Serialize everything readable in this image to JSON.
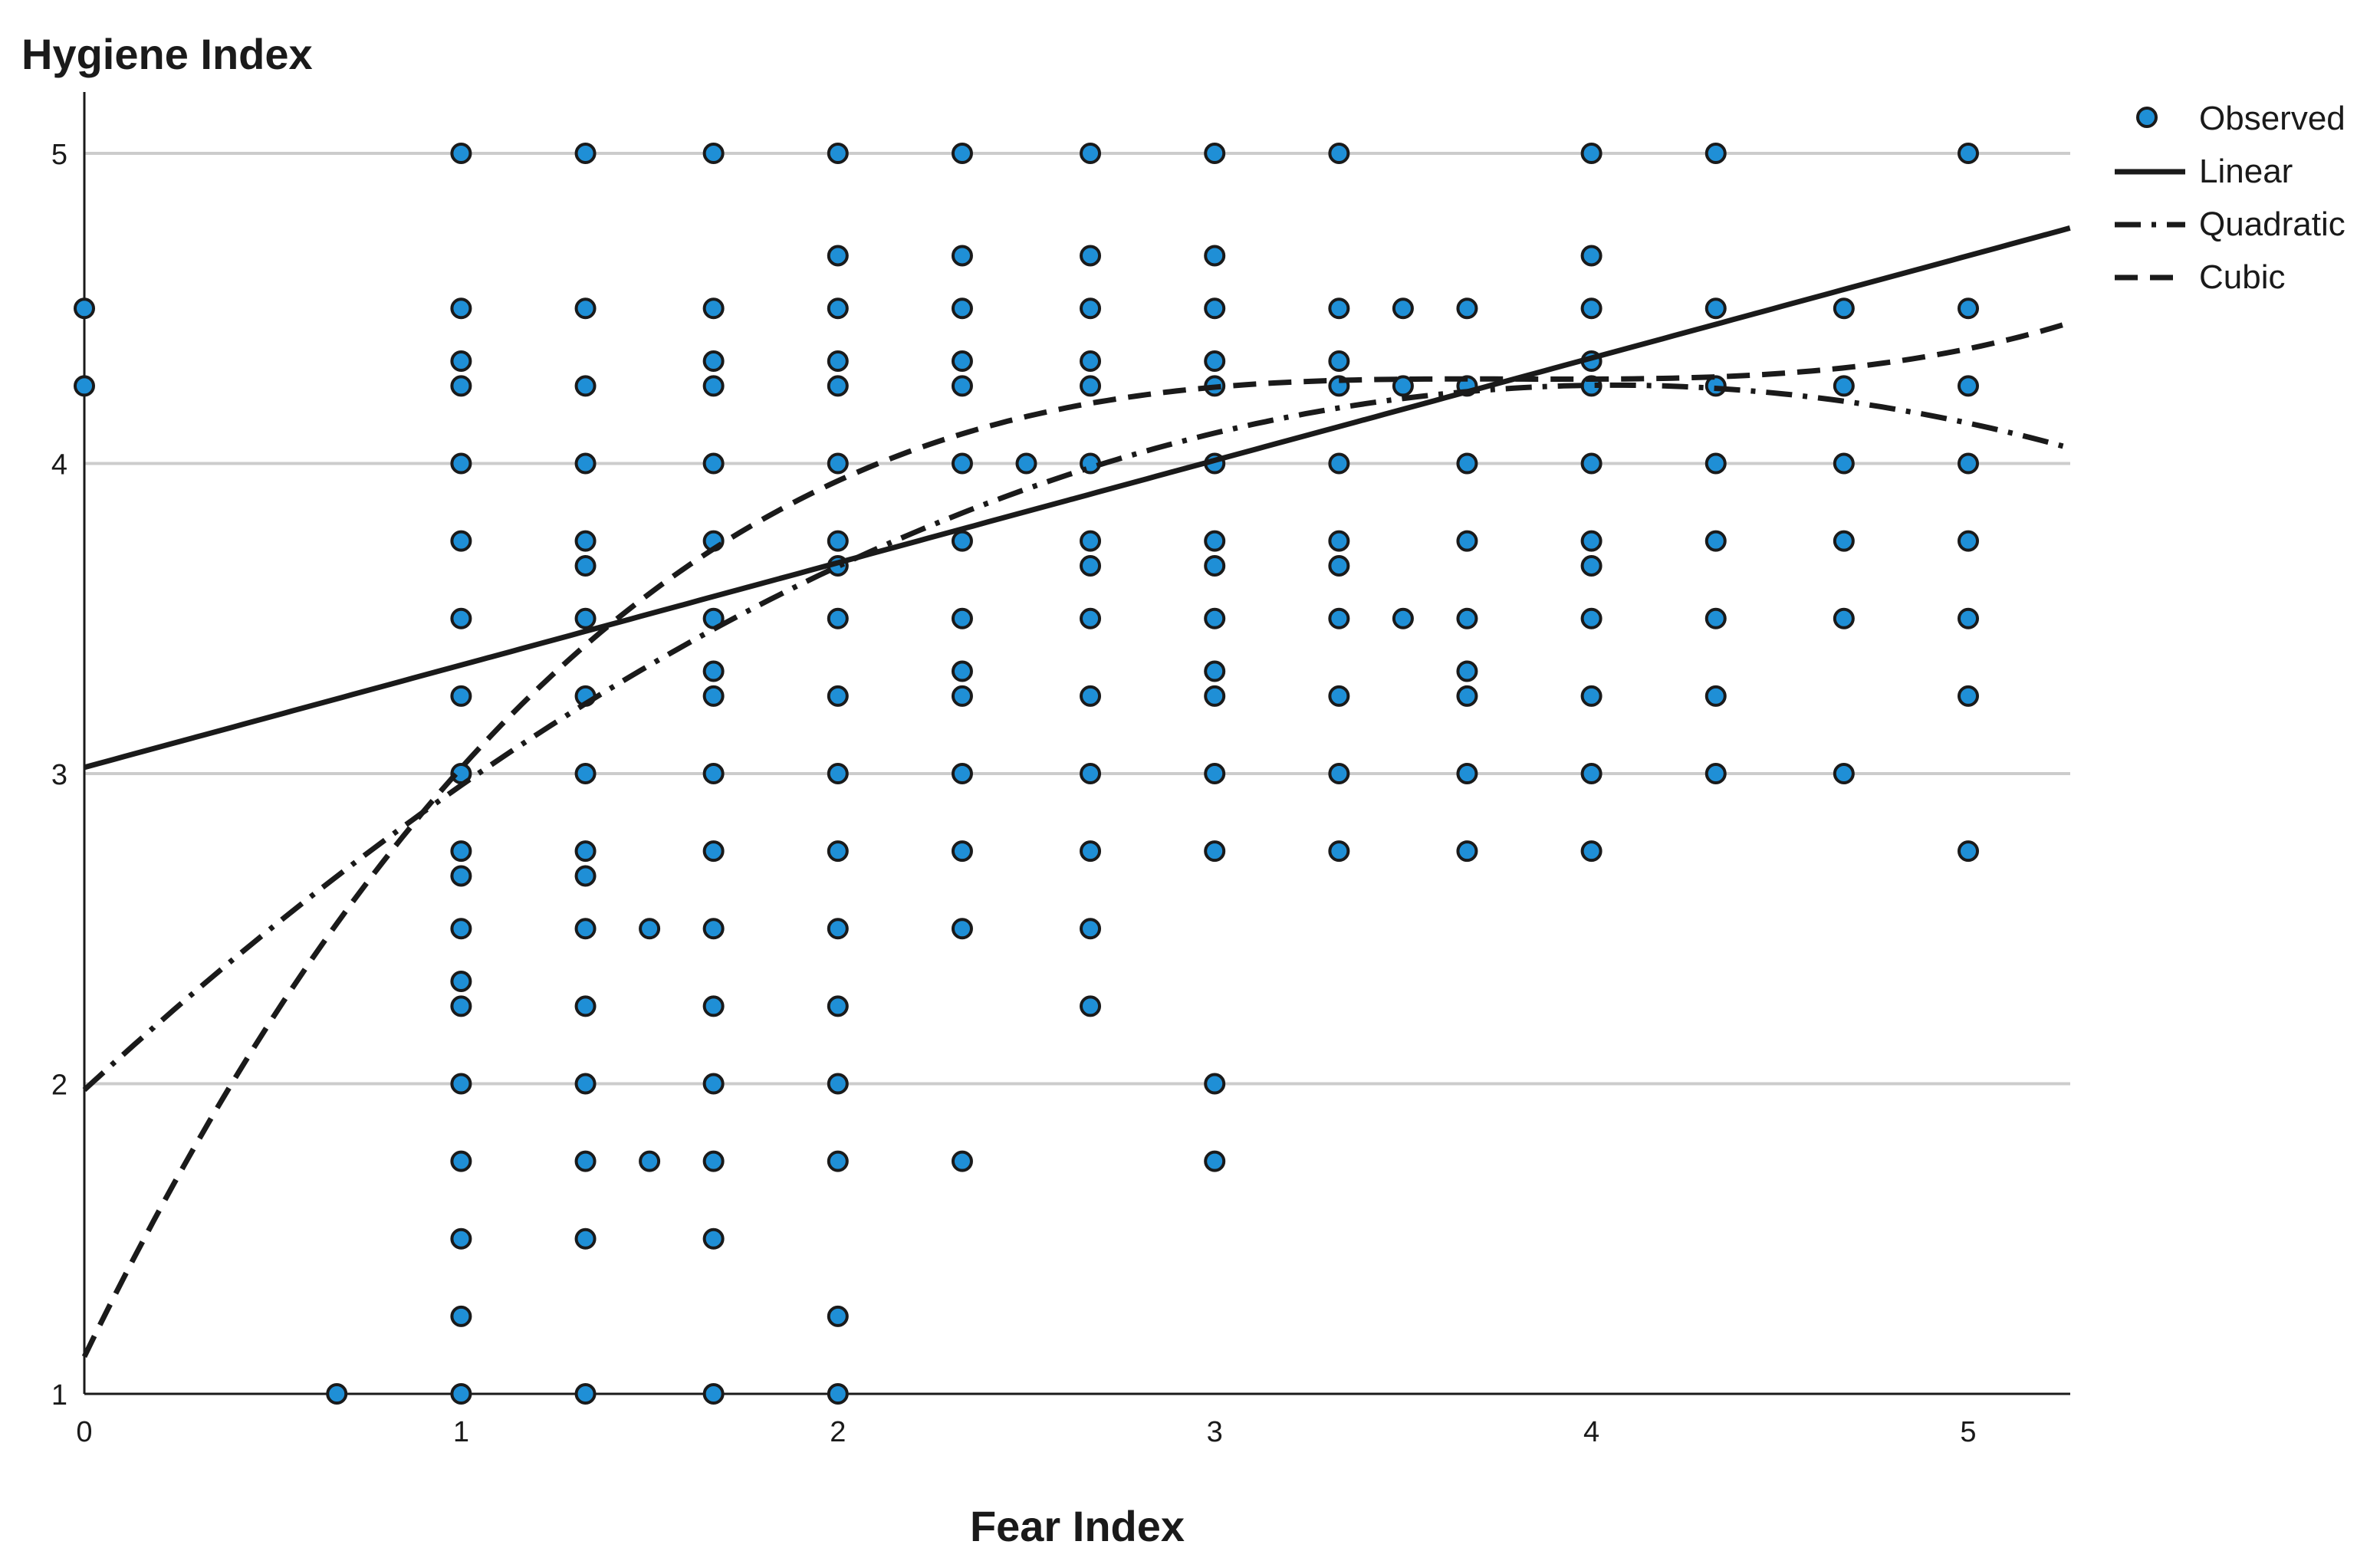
{
  "chart_data": {
    "type": "scatter",
    "ylabel": "Hygiene Index",
    "xlabel": "Fear Index",
    "xlim": [
      0,
      5.27
    ],
    "ylim": [
      1,
      5.2
    ],
    "xticks": [
      0,
      1,
      2,
      3,
      4,
      5
    ],
    "yticks": [
      1,
      2,
      3,
      4,
      5
    ],
    "grid": "horizontal",
    "legend_position": "top-right",
    "legend": [
      "Observed",
      "Linear",
      "Quadratic",
      "Cubic"
    ],
    "colors": {
      "point_fill": "#1f8fd6",
      "point_edge": "#1a1a1a",
      "line": "#1a1a1a",
      "grid": "#cccccc"
    },
    "observed": {
      "name": "Observed",
      "points": [
        [
          0,
          4.5
        ],
        [
          0,
          4.25
        ],
        [
          0.67,
          1
        ],
        [
          1,
          5
        ],
        [
          1,
          4.5
        ],
        [
          1,
          4.33
        ],
        [
          1,
          4.25
        ],
        [
          1,
          4
        ],
        [
          1,
          3.75
        ],
        [
          1,
          3.5
        ],
        [
          1,
          3.25
        ],
        [
          1,
          3
        ],
        [
          1,
          2.75
        ],
        [
          1,
          2.67
        ],
        [
          1,
          2.5
        ],
        [
          1,
          2.33
        ],
        [
          1,
          2.25
        ],
        [
          1,
          2
        ],
        [
          1,
          1.75
        ],
        [
          1,
          1.5
        ],
        [
          1,
          1.25
        ],
        [
          1,
          1
        ],
        [
          1.33,
          5
        ],
        [
          1.33,
          4.5
        ],
        [
          1.33,
          4.25
        ],
        [
          1.33,
          4
        ],
        [
          1.33,
          3.75
        ],
        [
          1.33,
          3.67
        ],
        [
          1.33,
          3.5
        ],
        [
          1.33,
          3.25
        ],
        [
          1.33,
          3
        ],
        [
          1.33,
          2.75
        ],
        [
          1.33,
          2.67
        ],
        [
          1.33,
          2.5
        ],
        [
          1.33,
          2.25
        ],
        [
          1.33,
          2
        ],
        [
          1.33,
          1.75
        ],
        [
          1.33,
          1.5
        ],
        [
          1.33,
          1
        ],
        [
          1.5,
          2.5
        ],
        [
          1.5,
          1.75
        ],
        [
          1.67,
          5
        ],
        [
          1.67,
          4.5
        ],
        [
          1.67,
          4.33
        ],
        [
          1.67,
          4.25
        ],
        [
          1.67,
          4
        ],
        [
          1.67,
          3.75
        ],
        [
          1.67,
          3.5
        ],
        [
          1.67,
          3.33
        ],
        [
          1.67,
          3.25
        ],
        [
          1.67,
          3
        ],
        [
          1.67,
          2.75
        ],
        [
          1.67,
          2.5
        ],
        [
          1.67,
          2.25
        ],
        [
          1.67,
          2
        ],
        [
          1.67,
          1.75
        ],
        [
          1.67,
          1.5
        ],
        [
          1.67,
          1
        ],
        [
          2,
          5
        ],
        [
          2,
          4.67
        ],
        [
          2,
          4.5
        ],
        [
          2,
          4.33
        ],
        [
          2,
          4.25
        ],
        [
          2,
          4
        ],
        [
          2,
          3.75
        ],
        [
          2,
          3.67
        ],
        [
          2,
          3.5
        ],
        [
          2,
          3.25
        ],
        [
          2,
          3
        ],
        [
          2,
          2.75
        ],
        [
          2,
          2.5
        ],
        [
          2,
          2.25
        ],
        [
          2,
          2
        ],
        [
          2,
          1.75
        ],
        [
          2,
          1.25
        ],
        [
          2,
          1
        ],
        [
          2.33,
          5
        ],
        [
          2.33,
          4.67
        ],
        [
          2.33,
          4.5
        ],
        [
          2.33,
          4.33
        ],
        [
          2.33,
          4.25
        ],
        [
          2.33,
          4
        ],
        [
          2.33,
          3.75
        ],
        [
          2.33,
          3.5
        ],
        [
          2.33,
          3.33
        ],
        [
          2.33,
          3.25
        ],
        [
          2.33,
          3
        ],
        [
          2.33,
          2.75
        ],
        [
          2.33,
          2.5
        ],
        [
          2.33,
          1.75
        ],
        [
          2.5,
          4
        ],
        [
          2.67,
          5
        ],
        [
          2.67,
          4.67
        ],
        [
          2.67,
          4.5
        ],
        [
          2.67,
          4.33
        ],
        [
          2.67,
          4.25
        ],
        [
          2.67,
          4
        ],
        [
          2.67,
          3.75
        ],
        [
          2.67,
          3.67
        ],
        [
          2.67,
          3.5
        ],
        [
          2.67,
          3.25
        ],
        [
          2.67,
          3
        ],
        [
          2.67,
          2.75
        ],
        [
          2.67,
          2.5
        ],
        [
          2.67,
          2.25
        ],
        [
          3,
          5
        ],
        [
          3,
          4.67
        ],
        [
          3,
          4.5
        ],
        [
          3,
          4.33
        ],
        [
          3,
          4.25
        ],
        [
          3,
          4
        ],
        [
          3,
          3.75
        ],
        [
          3,
          3.67
        ],
        [
          3,
          3.5
        ],
        [
          3,
          3.33
        ],
        [
          3,
          3.25
        ],
        [
          3,
          3
        ],
        [
          3,
          2.75
        ],
        [
          3,
          2
        ],
        [
          3,
          1.75
        ],
        [
          3.33,
          5
        ],
        [
          3.33,
          4.5
        ],
        [
          3.33,
          4.33
        ],
        [
          3.33,
          4.25
        ],
        [
          3.33,
          4
        ],
        [
          3.33,
          3.75
        ],
        [
          3.33,
          3.67
        ],
        [
          3.33,
          3.5
        ],
        [
          3.33,
          3.25
        ],
        [
          3.33,
          3
        ],
        [
          3.33,
          2.75
        ],
        [
          3.5,
          4.5
        ],
        [
          3.5,
          4.25
        ],
        [
          3.5,
          3.5
        ],
        [
          3.67,
          4.5
        ],
        [
          3.67,
          4.25
        ],
        [
          3.67,
          4
        ],
        [
          3.67,
          3.75
        ],
        [
          3.67,
          3.5
        ],
        [
          3.67,
          3.33
        ],
        [
          3.67,
          3.25
        ],
        [
          3.67,
          3
        ],
        [
          3.67,
          2.75
        ],
        [
          4,
          5
        ],
        [
          4,
          4.67
        ],
        [
          4,
          4.5
        ],
        [
          4,
          4.33
        ],
        [
          4,
          4.25
        ],
        [
          4,
          4
        ],
        [
          4,
          3.75
        ],
        [
          4,
          3.67
        ],
        [
          4,
          3.5
        ],
        [
          4,
          3.25
        ],
        [
          4,
          3
        ],
        [
          4,
          2.75
        ],
        [
          4.33,
          5
        ],
        [
          4.33,
          4.5
        ],
        [
          4.33,
          4.25
        ],
        [
          4.33,
          4
        ],
        [
          4.33,
          3.75
        ],
        [
          4.33,
          3.5
        ],
        [
          4.33,
          3.25
        ],
        [
          4.33,
          3
        ],
        [
          4.67,
          4.5
        ],
        [
          4.67,
          4.25
        ],
        [
          4.67,
          4
        ],
        [
          4.67,
          3.75
        ],
        [
          4.67,
          3.5
        ],
        [
          4.67,
          3
        ],
        [
          5,
          5
        ],
        [
          5,
          4.5
        ],
        [
          5,
          4.25
        ],
        [
          5,
          4
        ],
        [
          5,
          3.75
        ],
        [
          5,
          3.5
        ],
        [
          5,
          3.25
        ],
        [
          5,
          2.75
        ]
      ]
    },
    "fits": [
      {
        "name": "Linear",
        "style": "solid",
        "coefficients": [
          3.02,
          0.33
        ]
      },
      {
        "name": "Quadratic",
        "style": "dashdot",
        "coefficients": [
          1.98,
          1.12,
          -0.138
        ]
      },
      {
        "name": "Cubic",
        "style": "dashed",
        "coefficients": [
          1.12,
          2.5,
          -0.66,
          0.058
        ]
      }
    ]
  }
}
